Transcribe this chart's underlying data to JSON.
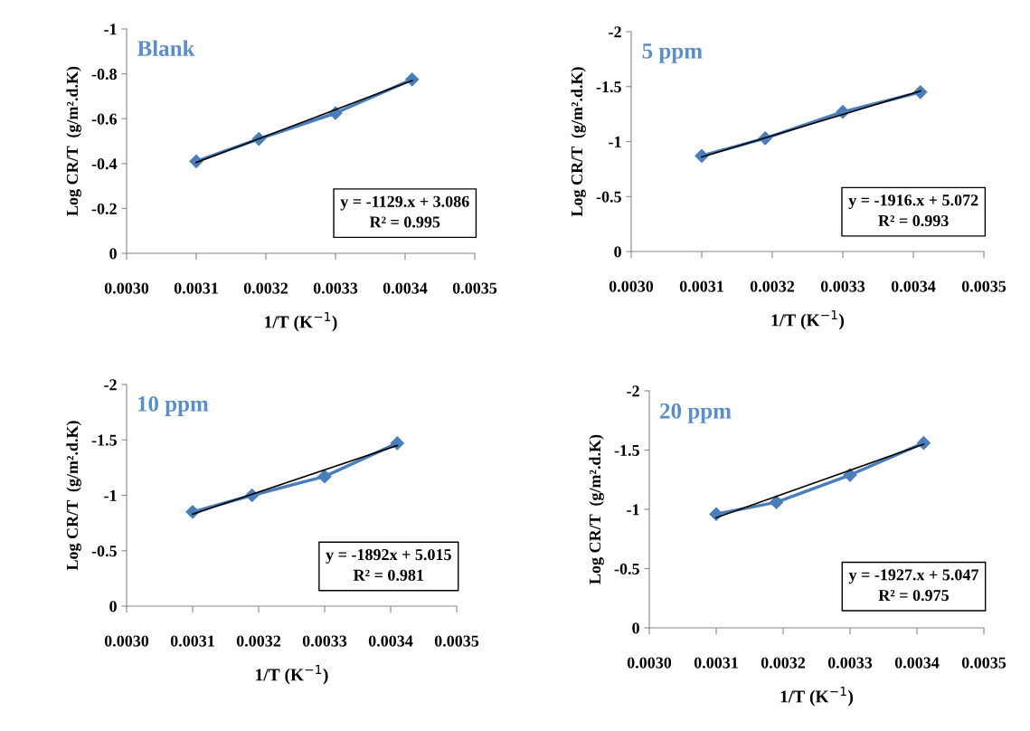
{
  "chart_data": [
    {
      "type": "line",
      "xlabel": "1/T (K$^{−1}$)",
      "ylabel": "Log CR/T  (g/m².d.K)",
      "annotations": [
        "Blank",
        "y = -1129.x + 3.086\nR² = 0.995"
      ],
      "xlim": [
        0.003,
        0.0035
      ],
      "ylim": [
        0,
        -1
      ],
      "xticks": [
        {
          "value": 0.003,
          "label": "0.0030"
        },
        {
          "value": 0.0031,
          "label": "0.0031"
        },
        {
          "value": 0.0032,
          "label": "0.0032"
        },
        {
          "value": 0.0033,
          "label": "0.0033"
        },
        {
          "value": 0.0034,
          "label": "0.0034"
        },
        {
          "value": 0.0035,
          "label": "0.0035"
        }
      ],
      "yticks": [
        0,
        -0.2,
        -0.4,
        -0.6,
        -0.8,
        -1
      ],
      "grid": false,
      "legend": false,
      "series": [
        {
          "color": "#4a7ebb",
          "marker": "diamond",
          "x": [
            0.0031,
            0.00319,
            0.0033,
            0.00341
          ],
          "values": [
            -0.41,
            -0.51,
            -0.625,
            -0.775
          ]
        },
        {
          "color": "#000000",
          "marker": "none",
          "x": [
            0.0031,
            0.00341
          ],
          "values": [
            -0.405,
            -0.77
          ]
        }
      ]
    },
    {
      "type": "line",
      "xlabel": "1/T (K$^{−1}$)",
      "ylabel": "Log CR/T  (g/m².d.K)",
      "annotations": [
        "5 ppm",
        "y = -1916.x + 5.072\nR² = 0.993"
      ],
      "xlim": [
        0.003,
        0.0035
      ],
      "ylim": [
        0,
        -2
      ],
      "xticks": [
        {
          "value": 0.003,
          "label": "0.0030"
        },
        {
          "value": 0.0031,
          "label": "0.0031"
        },
        {
          "value": 0.0032,
          "label": "0.0032"
        },
        {
          "value": 0.0033,
          "label": "0.0033"
        },
        {
          "value": 0.0034,
          "label": "0.0034"
        },
        {
          "value": 0.0035,
          "label": "0.0035"
        }
      ],
      "yticks": [
        0,
        -0.5,
        -1,
        -1.5,
        -2
      ],
      "grid": false,
      "legend": false,
      "series": [
        {
          "color": "#4a7ebb",
          "marker": "diamond",
          "x": [
            0.0031,
            0.00319,
            0.0033,
            0.00341
          ],
          "values": [
            -0.87,
            -1.03,
            -1.27,
            -1.45
          ]
        },
        {
          "color": "#000000",
          "marker": "none",
          "x": [
            0.0031,
            0.00341
          ],
          "values": [
            -0.86,
            -1.46
          ]
        }
      ]
    },
    {
      "type": "line",
      "xlabel": "1/T (K$^{−1}$)",
      "ylabel": "Log CR/T  (g/m².d.K)",
      "annotations": [
        "10 ppm",
        "y = -1892x + 5.015\nR² = 0.981"
      ],
      "xlim": [
        0.003,
        0.0035
      ],
      "ylim": [
        0,
        -2
      ],
      "xticks": [
        {
          "value": 0.003,
          "label": "0.0030"
        },
        {
          "value": 0.0031,
          "label": "0.0031"
        },
        {
          "value": 0.0032,
          "label": "0.0032"
        },
        {
          "value": 0.0033,
          "label": "0.0033"
        },
        {
          "value": 0.0034,
          "label": "0.0034"
        },
        {
          "value": 0.0035,
          "label": "0.0035"
        }
      ],
      "yticks": [
        0,
        -0.5,
        -1,
        -1.5,
        -2
      ],
      "grid": false,
      "legend": false,
      "series": [
        {
          "color": "#4a7ebb",
          "marker": "diamond",
          "x": [
            0.0031,
            0.00319,
            0.0033,
            0.00341
          ],
          "values": [
            -0.85,
            -1.0,
            -1.17,
            -1.47
          ]
        },
        {
          "color": "#000000",
          "marker": "none",
          "x": [
            0.0031,
            0.00341
          ],
          "values": [
            -0.83,
            -1.45
          ]
        }
      ]
    },
    {
      "type": "line",
      "xlabel": "1/T (K$^{−1}$)",
      "ylabel": "Log CR/T  (g/m².d.K)",
      "annotations": [
        "20 ppm",
        "y = -1927.x + 5.047\nR² = 0.975"
      ],
      "xlim": [
        0.003,
        0.0035
      ],
      "ylim": [
        0,
        -2
      ],
      "xticks": [
        {
          "value": 0.003,
          "label": "0.0030"
        },
        {
          "value": 0.0031,
          "label": "0.0031"
        },
        {
          "value": 0.0032,
          "label": "0.0032"
        },
        {
          "value": 0.0033,
          "label": "0.0033"
        },
        {
          "value": 0.0034,
          "label": "0.0034"
        },
        {
          "value": 0.0035,
          "label": "0.0035"
        }
      ],
      "yticks": [
        0,
        -0.5,
        -1,
        -1.5,
        -2
      ],
      "grid": false,
      "legend": false,
      "series": [
        {
          "color": "#4a7ebb",
          "marker": "diamond",
          "x": [
            0.0031,
            0.00319,
            0.0033,
            0.00341
          ],
          "values": [
            -0.96,
            -1.06,
            -1.29,
            -1.56
          ]
        },
        {
          "color": "#000000",
          "marker": "none",
          "x": [
            0.0031,
            0.00341
          ],
          "values": [
            -0.93,
            -1.55
          ]
        }
      ]
    }
  ]
}
